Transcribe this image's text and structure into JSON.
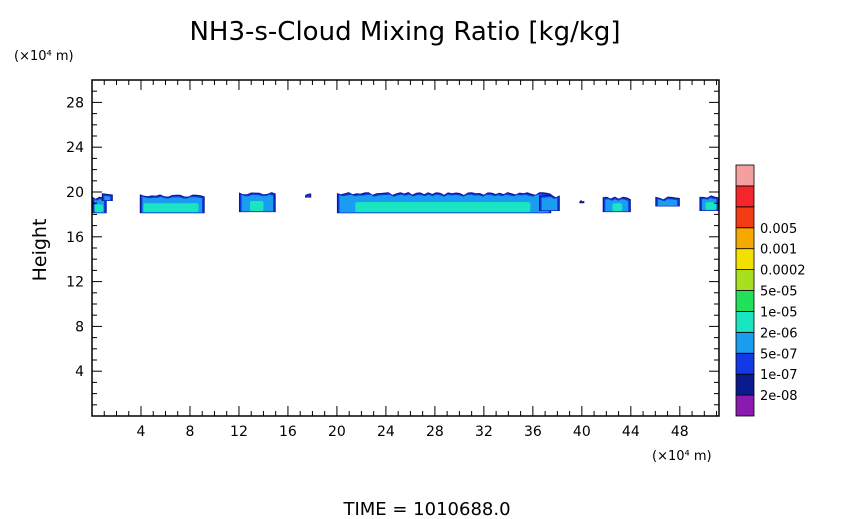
{
  "chart_data": {
    "type": "heatmap",
    "title": "NH3-s-Cloud Mixing Ratio [kg/kg]",
    "ylabel": "Height",
    "x_unit": "(×10⁴ m)",
    "y_unit": "(×10⁴ m)",
    "xlim": [
      0,
      51.2
    ],
    "ylim": [
      0,
      30
    ],
    "x_ticks": [
      4,
      8,
      12,
      16,
      20,
      24,
      28,
      32,
      36,
      40,
      44,
      48
    ],
    "y_ticks": [
      4,
      8,
      12,
      16,
      20,
      24,
      28
    ],
    "time_label": "TIME = 1010688.0",
    "colorbar": {
      "levels": [
        "2e-08",
        "1e-07",
        "5e-07",
        "2e-06",
        "1e-05",
        "5e-05",
        "0.0002",
        "0.001",
        "0.005"
      ],
      "colors": [
        "#8b1ab0",
        "#0a1a8c",
        "#1438e6",
        "#1a9cf0",
        "#19e6c0",
        "#21e05a",
        "#a8e020",
        "#f2e000",
        "#f5a800",
        "#f23c14",
        "#f5262a",
        "#f5a0a0"
      ]
    },
    "regions": [
      {
        "x": [
          0,
          1.2
        ],
        "y": [
          18.1,
          19.6
        ],
        "core": [
          0.2,
          0.9
        ],
        "core_y": [
          18.2,
          18.9
        ]
      },
      {
        "x": [
          0.8,
          1.7
        ],
        "y": [
          19.2,
          19.9
        ],
        "core": null
      },
      {
        "x": [
          3.9,
          9.2
        ],
        "y": [
          18.1,
          19.8
        ],
        "core": [
          4.2,
          8.7
        ],
        "core_y": [
          18.2,
          19.0
        ]
      },
      {
        "x": [
          12.0,
          15.0
        ],
        "y": [
          18.2,
          20.0
        ],
        "core": [
          12.9,
          14.0
        ],
        "core_y": [
          18.3,
          19.2
        ]
      },
      {
        "x": [
          20.0,
          37.5
        ],
        "y": [
          18.1,
          20.0
        ],
        "core": [
          21.5,
          35.8
        ],
        "core_y": [
          18.2,
          19.1
        ]
      },
      {
        "x": [
          36.5,
          38.2
        ],
        "y": [
          18.3,
          19.8
        ],
        "core": null
      },
      {
        "x": [
          41.7,
          44.0
        ],
        "y": [
          18.2,
          19.6
        ],
        "core": [
          42.5,
          43.3
        ],
        "core_y": [
          18.3,
          19.0
        ]
      },
      {
        "x": [
          46.0,
          48.0
        ],
        "y": [
          18.7,
          19.6
        ],
        "core": null
      },
      {
        "x": [
          49.6,
          51.2
        ],
        "y": [
          18.3,
          19.7
        ],
        "core": [
          50.1,
          51.0
        ],
        "core_y": [
          18.4,
          19.1
        ]
      },
      {
        "x": [
          17.4,
          17.9
        ],
        "y": [
          19.5,
          19.9
        ],
        "core": null
      },
      {
        "x": [
          39.8,
          40.2
        ],
        "y": [
          19.0,
          19.3
        ],
        "core": null
      }
    ]
  }
}
